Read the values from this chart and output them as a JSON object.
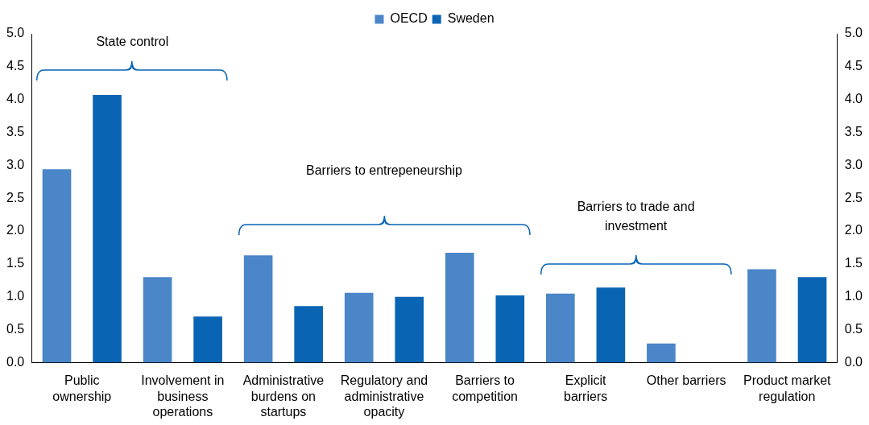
{
  "chart_data": {
    "type": "bar",
    "categories": [
      "Public ownership",
      "Involvement in business operations",
      "Administrative burdens on startups",
      "Regulatory and administrative opacity",
      "Barriers to competition",
      "Explicit barriers",
      "Other barriers",
      "Product market regulation"
    ],
    "series": [
      {
        "name": "OECD",
        "color": "#4a86c8",
        "values": [
          2.94,
          1.3,
          1.63,
          1.06,
          1.67,
          1.05,
          0.29,
          1.42
        ]
      },
      {
        "name": "Sweden",
        "color": "#0a64b4",
        "values": [
          4.07,
          0.7,
          0.86,
          1.0,
          1.02,
          1.14,
          0,
          1.3
        ]
      }
    ],
    "ylim": [
      0,
      5
    ],
    "yticks": [
      {
        "value": 0,
        "label": "0.0"
      },
      0.5,
      {
        "value": 1,
        "label": "1.0"
      },
      1.5,
      {
        "value": 2,
        "label": "2.0"
      },
      2.5,
      {
        "value": 3,
        "label": "3.0"
      },
      3.5,
      {
        "value": 4,
        "label": "4.0"
      },
      4.5,
      {
        "value": 5,
        "label": "5.0"
      }
    ],
    "y2lim": [
      0,
      5
    ],
    "y2ticks": [
      {
        "value": 0,
        "label": "0.0"
      },
      0.5,
      {
        "value": 1,
        "label": "1.0"
      },
      1.5,
      {
        "value": 2,
        "label": "2.0"
      },
      2.5,
      {
        "value": 3,
        "label": "3.0"
      },
      3.5,
      {
        "value": 4,
        "label": "4.0"
      },
      4.5,
      {
        "value": 5,
        "label": "5.0"
      }
    ],
    "annotations": [
      "State control",
      "Barriers to entrepeneurship",
      "Barriers to trade and investment"
    ],
    "grid": false,
    "legend": "top"
  }
}
